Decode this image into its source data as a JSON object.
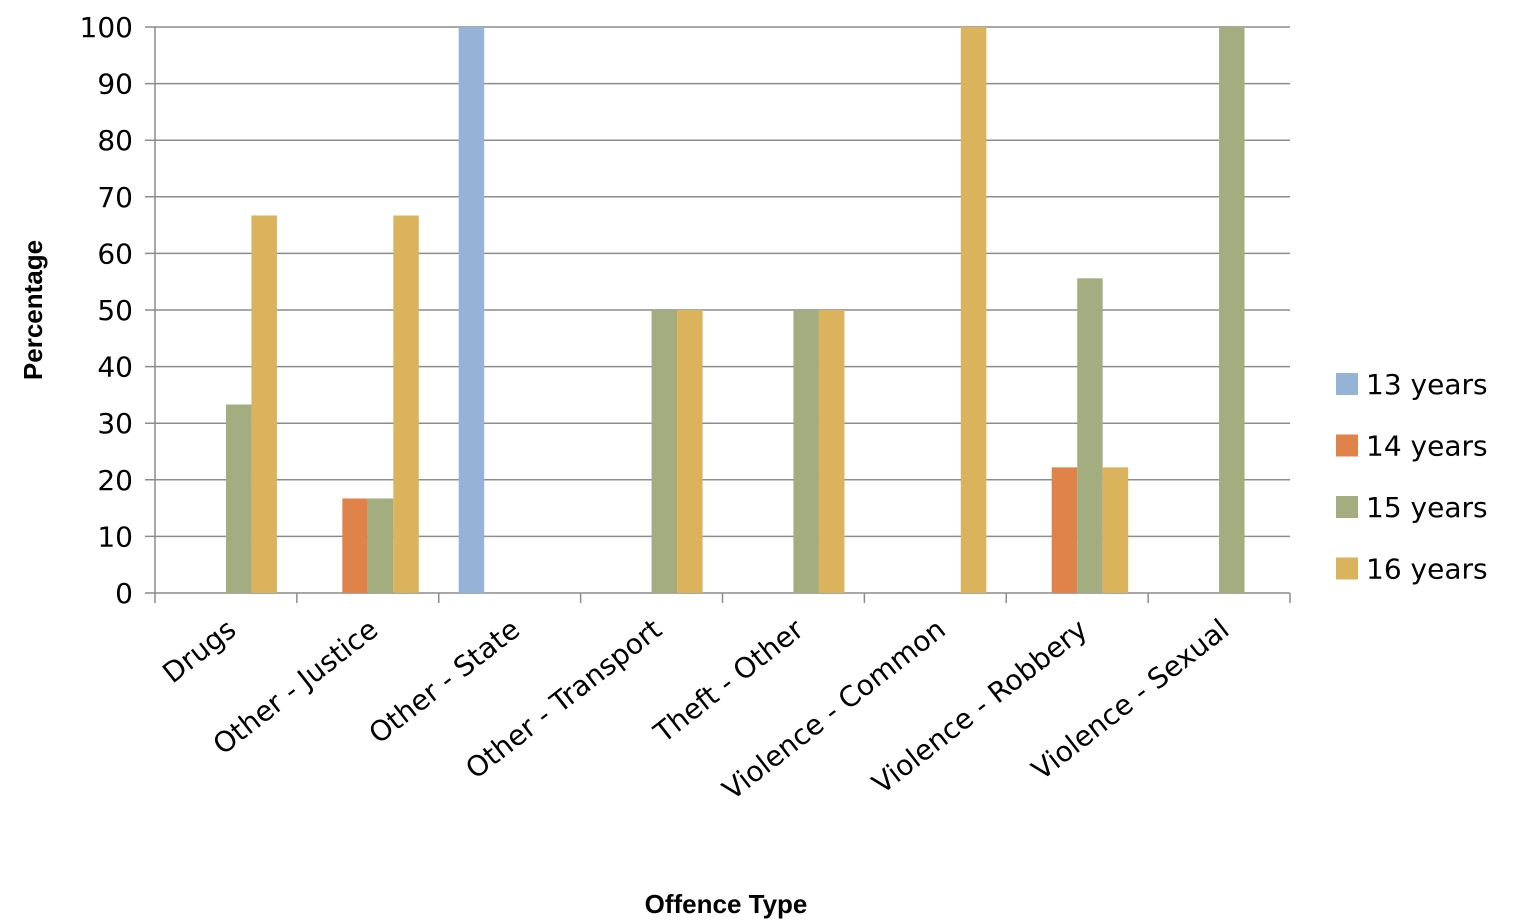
{
  "chart_data": {
    "type": "bar",
    "title": "",
    "xlabel": "Offence Type",
    "ylabel": "Percentage",
    "ylim": [
      0,
      100
    ],
    "yticks": [
      0,
      10,
      20,
      30,
      40,
      50,
      60,
      70,
      80,
      90,
      100
    ],
    "grid": true,
    "legend_position": "right",
    "categories": [
      "Drugs",
      "Other - Justice",
      "Other - State",
      "Other - Transport",
      "Theft - Other",
      "Violence - Common",
      "Violence - Robbery",
      "Violence - Sexual"
    ],
    "series": [
      {
        "name": "13 years",
        "color": "#95b3d7",
        "values": [
          0,
          0,
          100,
          0,
          0,
          0,
          0,
          0
        ]
      },
      {
        "name": "14 years",
        "color": "#e0834a",
        "values": [
          0,
          16.7,
          0,
          0,
          0,
          0,
          22.2,
          0
        ]
      },
      {
        "name": "15 years",
        "color": "#a3ad80",
        "values": [
          33.3,
          16.7,
          0,
          50,
          50,
          0,
          55.6,
          100
        ]
      },
      {
        "name": "16 years",
        "color": "#dcb35d",
        "values": [
          66.7,
          66.7,
          0,
          50,
          50,
          100,
          22.2,
          0
        ]
      }
    ]
  }
}
